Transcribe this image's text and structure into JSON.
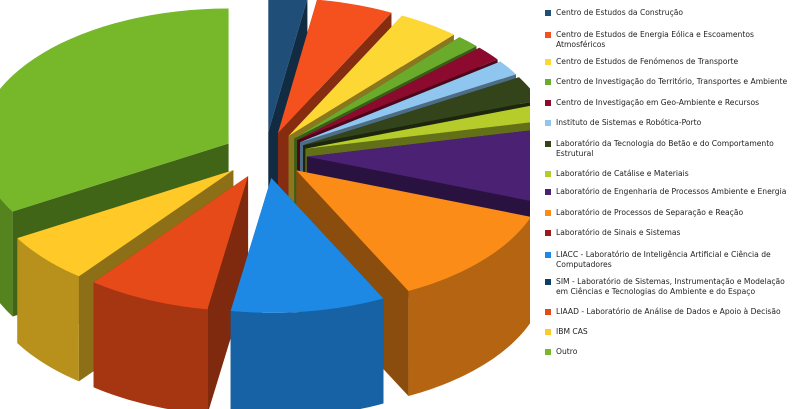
{
  "chart_data": {
    "type": "pie",
    "style": "3d-exploded",
    "legend_position": "right",
    "title": "",
    "slices": [
      {
        "label": "Centro de Estudos da Construção",
        "value": 2.5,
        "color": "#1F4E79"
      },
      {
        "label": "Centro de Estudos de Energia Eólica e Escoamentos Atmosféricos",
        "value": 5.0,
        "color": "#F4511E"
      },
      {
        "label": "Centro de Estudos de Fenómenos de Transporte",
        "value": 4.0,
        "color": "#FDD835"
      },
      {
        "label": "Centro de Investigação do Território, Transportes e Ambiente",
        "value": 1.5,
        "color": "#6AAB2C"
      },
      {
        "label": "Centro de Investigação em Geo-Ambiente e Recursos",
        "value": 1.8,
        "color": "#8B0A2E"
      },
      {
        "label": "Instituto de Sistemas e Robótica-Porto",
        "value": 1.8,
        "color": "#8EC6F0"
      },
      {
        "label": "Laboratório da Tecnologia do Betão e do Comportamento Estrutural",
        "value": 3.0,
        "color": "#33441A"
      },
      {
        "label": "Laboratório de Catálise e Materiais",
        "value": 2.0,
        "color": "#B5CC2A"
      },
      {
        "label": "Laboratório de Engenharia de Processos Ambiente e Energia",
        "value": 9.0,
        "color": "#4A2173"
      },
      {
        "label": "Laboratório de Processos de Separação e Reação",
        "value": 12.0,
        "color": "#FB8C18"
      },
      {
        "label": "Laboratório de Sinais e Sistemas",
        "value": 0.0,
        "color": "#9E1A1A"
      },
      {
        "label": "LIACC - Laboratório de Inteligência Artificial e Ciência de Computadores",
        "value": 10.0,
        "color": "#1E88E5"
      },
      {
        "label": "SIM - Laboratório de Sistemas, Instrumentação e Modelação em Ciências e Tecnologias do Ambiente e do Espaço",
        "value": 0.0,
        "color": "#0D3F66"
      },
      {
        "label": "LIAAD - Laboratório de Análise de Dados e Apoio à Decisão",
        "value": 8.0,
        "color": "#E64A19"
      },
      {
        "label": "IBM CAS",
        "value": 6.0,
        "color": "#FFCA28"
      },
      {
        "label": "Outro",
        "value": 33.4,
        "color": "#76B82A"
      }
    ]
  }
}
